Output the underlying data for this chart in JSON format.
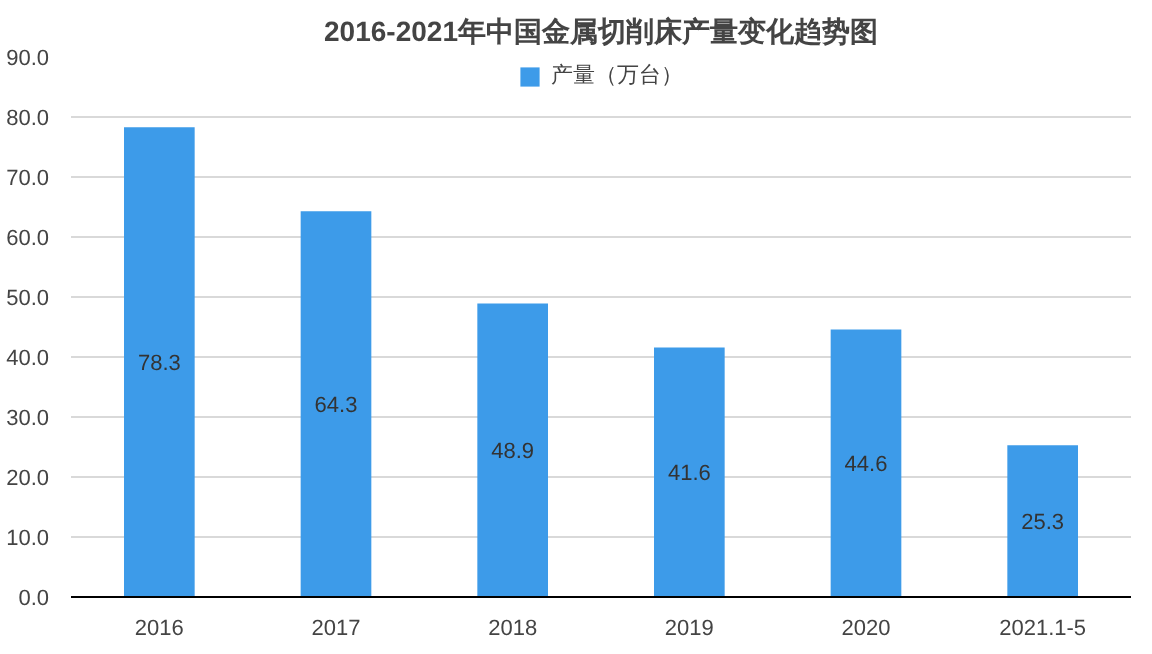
{
  "chart_data": {
    "type": "bar",
    "title": "2016-2021年中国金属切削床产量变化趋势图",
    "categories": [
      "2016",
      "2017",
      "2018",
      "2019",
      "2020",
      "2021.1-5"
    ],
    "series": [
      {
        "name": "产量（万台）",
        "color": "#3d9be9",
        "values": [
          78.3,
          64.3,
          48.9,
          41.6,
          44.6,
          25.3
        ]
      }
    ],
    "data_labels": true,
    "ylim": [
      0,
      90
    ],
    "yticks": [
      {
        "value": 0,
        "label": "0.0"
      },
      {
        "value": 10,
        "label": "10.0"
      },
      {
        "value": 20,
        "label": "20.0"
      },
      {
        "value": 30,
        "label": "30.0"
      },
      {
        "value": 40,
        "label": "40.0"
      },
      {
        "value": 50,
        "label": "50.0"
      },
      {
        "value": 60,
        "label": "60.0"
      },
      {
        "value": 70,
        "label": "70.0"
      },
      {
        "value": 80,
        "label": "80.0"
      },
      {
        "value": 90,
        "label": "90.0"
      }
    ],
    "grid": "y",
    "legend": "top"
  }
}
